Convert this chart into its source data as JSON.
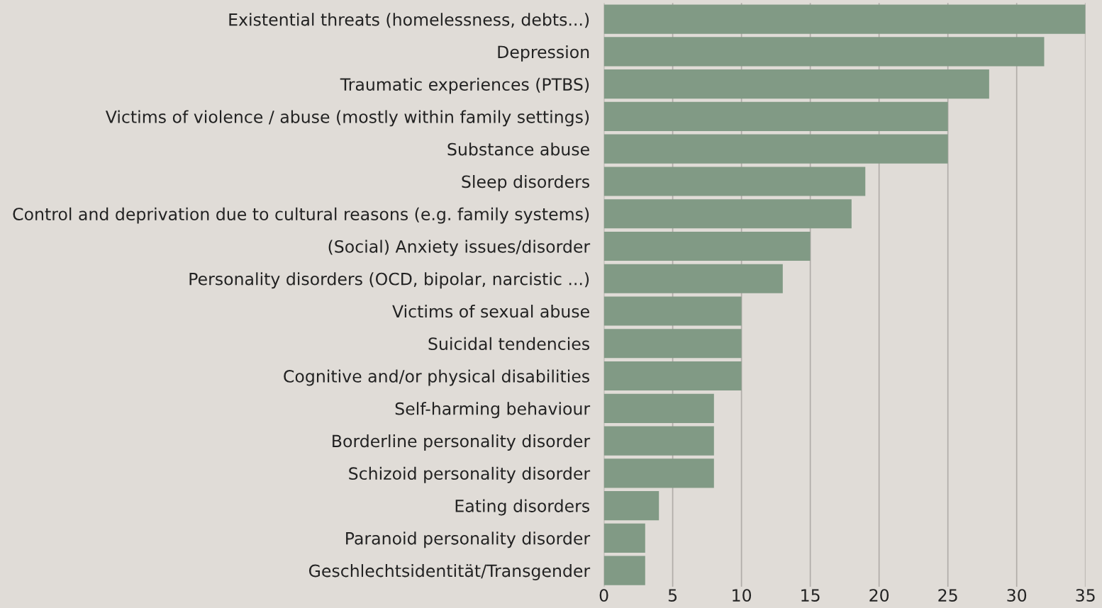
{
  "chart_data": {
    "type": "bar",
    "orientation": "horizontal",
    "categories": [
      "Existential threats (homelessness, debts...)",
      "Depression",
      "Traumatic experiences (PTBS)",
      "Victims of violence / abuse (mostly within family settings)",
      "Substance abuse",
      "Sleep disorders",
      "Control and deprivation due to cultural reasons (e.g. family systems)",
      "(Social) Anxiety issues/disorder",
      "Personality disorders (OCD, bipolar, narcistic ...)",
      "Victims of sexual abuse",
      "Suicidal tendencies",
      "Cognitive and/or physical disabilities",
      "Self-harming behaviour",
      "Borderline personality disorder",
      "Schizoid personality disorder",
      "Eating disorders",
      "Paranoid personality disorder",
      "Geschlechtsidentität/Transgender"
    ],
    "values": [
      35,
      32,
      28,
      25,
      25,
      19,
      18,
      15,
      13,
      10,
      10,
      10,
      8,
      8,
      8,
      4,
      3,
      3
    ],
    "color": "#819a85",
    "xlim": [
      0,
      35
    ],
    "xticks": [
      0,
      5,
      10,
      15,
      20,
      25,
      30,
      35
    ],
    "grid": "x"
  }
}
